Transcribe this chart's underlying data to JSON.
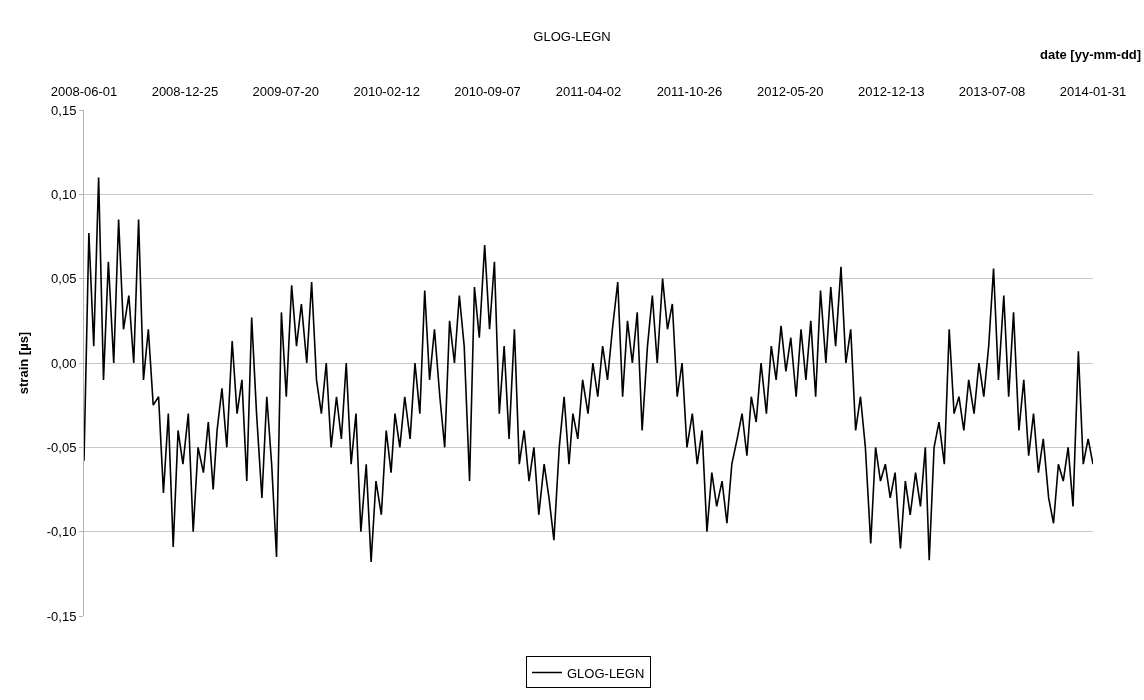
{
  "chart_data": {
    "type": "line",
    "title": "GLOG-LEGN",
    "xlabel": "date [yy-mm-dd]",
    "ylabel": "strain [µs]",
    "xlim": [
      "2008-06-01",
      "2014-01-31"
    ],
    "xticks": [
      {
        "value": "2008-06-01",
        "label": "2008-06-01"
      },
      {
        "value": "2008-12-25",
        "label": "2008-12-25"
      },
      {
        "value": "2009-07-20",
        "label": "2009-07-20"
      },
      {
        "value": "2010-02-12",
        "label": "2010-02-12"
      },
      {
        "value": "2010-09-07",
        "label": "2010-09-07"
      },
      {
        "value": "2011-04-02",
        "label": "2011-04-02"
      },
      {
        "value": "2011-10-26",
        "label": "2011-10-26"
      },
      {
        "value": "2012-05-20",
        "label": "2012-05-20"
      },
      {
        "value": "2012-12-13",
        "label": "2012-12-13"
      },
      {
        "value": "2013-07-08",
        "label": "2013-07-08"
      },
      {
        "value": "2014-01-31",
        "label": "2014-01-31"
      }
    ],
    "ylim": [
      -0.15,
      0.15
    ],
    "yticks": [
      {
        "value": -0.15,
        "label": "-0,15"
      },
      {
        "value": -0.1,
        "label": "-0,10"
      },
      {
        "value": -0.05,
        "label": "-0,05"
      },
      {
        "value": 0,
        "label": "0,00"
      },
      {
        "value": 0.05,
        "label": "0,05"
      },
      {
        "value": 0.1,
        "label": "0,10"
      },
      {
        "value": 0.15,
        "label": "0,15"
      }
    ],
    "grid": "y",
    "legend": "bottom",
    "line_style": "solid",
    "x": [
      "2008-06-01",
      "2008-06-11",
      "2008-06-21",
      "2008-07-01",
      "2008-07-11",
      "2008-07-21",
      "2008-08-01",
      "2008-08-11",
      "2008-08-21",
      "2008-09-01",
      "2008-09-11",
      "2008-09-21",
      "2008-10-01",
      "2008-10-11",
      "2008-10-21",
      "2008-11-01",
      "2008-11-11",
      "2008-11-21",
      "2008-12-01",
      "2008-12-11",
      "2008-12-21",
      "2009-01-01",
      "2009-01-11",
      "2009-01-21",
      "2009-02-01",
      "2009-02-11",
      "2009-02-21",
      "2009-03-01",
      "2009-03-11",
      "2009-03-21",
      "2009-04-01",
      "2009-04-11",
      "2009-04-21",
      "2009-05-01",
      "2009-05-11",
      "2009-05-21",
      "2009-06-01",
      "2009-06-11",
      "2009-06-21",
      "2009-07-01",
      "2009-07-11",
      "2009-07-21",
      "2009-08-01",
      "2009-08-11",
      "2009-08-21",
      "2009-09-01",
      "2009-09-11",
      "2009-09-21",
      "2009-10-01",
      "2009-10-11",
      "2009-10-21",
      "2009-11-01",
      "2009-11-11",
      "2009-11-21",
      "2009-12-01",
      "2009-12-11",
      "2009-12-21",
      "2010-01-01",
      "2010-01-11",
      "2010-01-21",
      "2010-02-01",
      "2010-02-11",
      "2010-02-21",
      "2010-03-01",
      "2010-03-11",
      "2010-03-21",
      "2010-04-01",
      "2010-04-11",
      "2010-04-21",
      "2010-05-01",
      "2010-05-11",
      "2010-05-21",
      "2010-06-01",
      "2010-06-11",
      "2010-06-21",
      "2010-07-01",
      "2010-07-11",
      "2010-07-21",
      "2010-08-01",
      "2010-08-11",
      "2010-08-21",
      "2010-09-01",
      "2010-09-11",
      "2010-09-21",
      "2010-10-01",
      "2010-10-11",
      "2010-10-21",
      "2010-11-01",
      "2010-11-11",
      "2010-11-21",
      "2010-12-01",
      "2010-12-11",
      "2010-12-21",
      "2011-01-01",
      "2011-01-11",
      "2011-01-21",
      "2011-02-01",
      "2011-02-11",
      "2011-02-21",
      "2011-03-01",
      "2011-03-11",
      "2011-03-21",
      "2011-04-01",
      "2011-04-11",
      "2011-04-21",
      "2011-05-01",
      "2011-05-11",
      "2011-05-21",
      "2011-06-01",
      "2011-06-11",
      "2011-06-21",
      "2011-07-01",
      "2011-07-11",
      "2011-07-21",
      "2011-08-01",
      "2011-08-11",
      "2011-08-21",
      "2011-09-01",
      "2011-09-11",
      "2011-09-21",
      "2011-10-01",
      "2011-10-11",
      "2011-10-21",
      "2011-11-01",
      "2011-11-11",
      "2011-11-21",
      "2011-12-01",
      "2011-12-11",
      "2011-12-21",
      "2012-01-01",
      "2012-01-11",
      "2012-01-21",
      "2012-02-01",
      "2012-02-11",
      "2012-02-21",
      "2012-03-01",
      "2012-03-11",
      "2012-03-21",
      "2012-04-01",
      "2012-04-11",
      "2012-04-21",
      "2012-05-01",
      "2012-05-11",
      "2012-05-21",
      "2012-06-01",
      "2012-06-11",
      "2012-06-21",
      "2012-07-01",
      "2012-07-11",
      "2012-07-21",
      "2012-08-01",
      "2012-08-11",
      "2012-08-21",
      "2012-09-01",
      "2012-09-11",
      "2012-09-21",
      "2012-10-01",
      "2012-10-11",
      "2012-10-21",
      "2012-11-01",
      "2012-11-11",
      "2012-11-21",
      "2012-12-01",
      "2012-12-11",
      "2012-12-21",
      "2013-01-01",
      "2013-01-11",
      "2013-01-21",
      "2013-02-01",
      "2013-02-11",
      "2013-02-21",
      "2013-03-01",
      "2013-03-11",
      "2013-03-21",
      "2013-04-01",
      "2013-04-11",
      "2013-04-21",
      "2013-05-01",
      "2013-05-11",
      "2013-05-21",
      "2013-06-01",
      "2013-06-11",
      "2013-06-21",
      "2013-07-01",
      "2013-07-11",
      "2013-07-21",
      "2013-08-01",
      "2013-08-11",
      "2013-08-21",
      "2013-09-01",
      "2013-09-11",
      "2013-09-21",
      "2013-10-01",
      "2013-10-11",
      "2013-10-21",
      "2013-11-01",
      "2013-11-11",
      "2013-11-21",
      "2013-12-01",
      "2013-12-11",
      "2013-12-21",
      "2014-01-01",
      "2014-01-11",
      "2014-01-21",
      "2014-01-31"
    ],
    "series": [
      {
        "name": "GLOG-LEGN",
        "color": "#000000",
        "values": [
          -0.058,
          0.077,
          0.01,
          0.11,
          -0.01,
          0.06,
          0.0,
          0.085,
          0.02,
          0.04,
          0.0,
          0.085,
          -0.01,
          0.02,
          -0.025,
          -0.02,
          -0.077,
          -0.03,
          -0.109,
          -0.04,
          -0.06,
          -0.03,
          -0.1,
          -0.05,
          -0.065,
          -0.035,
          -0.075,
          -0.04,
          -0.015,
          -0.05,
          0.013,
          -0.03,
          -0.01,
          -0.07,
          0.027,
          -0.03,
          -0.08,
          -0.02,
          -0.06,
          -0.115,
          0.03,
          -0.02,
          0.046,
          0.01,
          0.035,
          0.0,
          0.048,
          -0.01,
          -0.03,
          0.0,
          -0.05,
          -0.02,
          -0.045,
          0.0,
          -0.06,
          -0.03,
          -0.1,
          -0.06,
          -0.118,
          -0.07,
          -0.09,
          -0.04,
          -0.065,
          -0.03,
          -0.05,
          -0.02,
          -0.045,
          0.0,
          -0.03,
          0.043,
          -0.01,
          0.02,
          -0.02,
          -0.05,
          0.025,
          0.0,
          0.04,
          0.01,
          -0.07,
          0.045,
          0.015,
          0.07,
          0.02,
          0.06,
          -0.03,
          0.01,
          -0.045,
          0.02,
          -0.06,
          -0.04,
          -0.07,
          -0.05,
          -0.09,
          -0.06,
          -0.08,
          -0.105,
          -0.05,
          -0.02,
          -0.06,
          -0.03,
          -0.045,
          -0.01,
          -0.03,
          0.0,
          -0.02,
          0.01,
          -0.01,
          0.02,
          0.048,
          -0.02,
          0.025,
          0.0,
          0.03,
          -0.04,
          0.01,
          0.04,
          0.0,
          0.05,
          0.02,
          0.035,
          -0.02,
          0.0,
          -0.05,
          -0.03,
          -0.06,
          -0.04,
          -0.1,
          -0.065,
          -0.085,
          -0.07,
          -0.095,
          -0.06,
          -0.045,
          -0.03,
          -0.055,
          -0.02,
          -0.035,
          0.0,
          -0.03,
          0.01,
          -0.01,
          0.022,
          -0.005,
          0.015,
          -0.02,
          0.02,
          -0.01,
          0.025,
          -0.02,
          0.043,
          0.0,
          0.045,
          0.01,
          0.057,
          0.0,
          0.02,
          -0.04,
          -0.02,
          -0.05,
          -0.107,
          -0.05,
          -0.07,
          -0.06,
          -0.08,
          -0.065,
          -0.11,
          -0.07,
          -0.09,
          -0.065,
          -0.085,
          -0.05,
          -0.117,
          -0.05,
          -0.035,
          -0.06,
          0.02,
          -0.03,
          -0.02,
          -0.04,
          -0.01,
          -0.03,
          0.0,
          -0.02,
          0.01,
          0.056,
          -0.01,
          0.04,
          -0.02,
          0.03,
          -0.04,
          -0.01,
          -0.055,
          -0.03,
          -0.065,
          -0.045,
          -0.08,
          -0.095,
          -0.06,
          -0.07,
          -0.05,
          -0.085,
          0.007,
          -0.06,
          -0.045,
          -0.06
        ]
      }
    ]
  }
}
